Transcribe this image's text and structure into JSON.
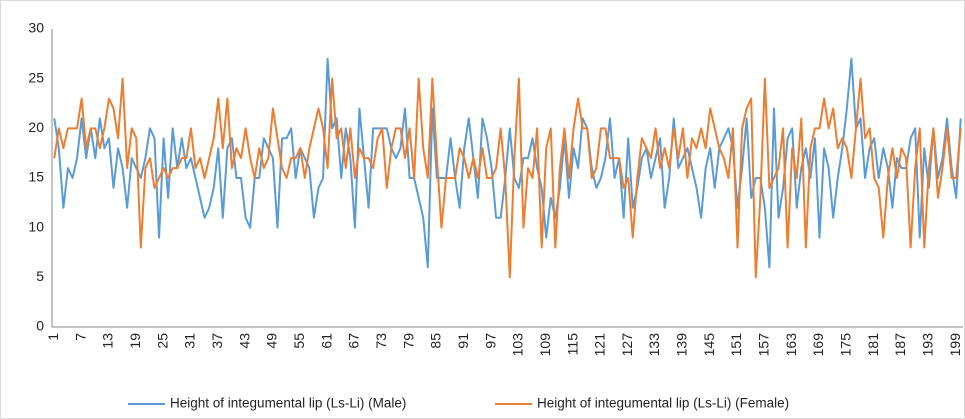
{
  "chart_data": {
    "type": "line",
    "categories": [
      1,
      null,
      null,
      null,
      null,
      null,
      7,
      null,
      null,
      null,
      null,
      null,
      13,
      null,
      null,
      null,
      null,
      null,
      19,
      null,
      null,
      null,
      null,
      null,
      25,
      null,
      null,
      null,
      null,
      null,
      31,
      null,
      null,
      null,
      null,
      null,
      37,
      null,
      null,
      null,
      null,
      null,
      43,
      null,
      null,
      null,
      null,
      null,
      49,
      null,
      null,
      null,
      null,
      null,
      55,
      null,
      null,
      null,
      null,
      null,
      61,
      null,
      null,
      null,
      null,
      null,
      67,
      null,
      null,
      null,
      null,
      null,
      73,
      null,
      null,
      null,
      null,
      null,
      79,
      null,
      null,
      null,
      null,
      null,
      85,
      null,
      null,
      null,
      null,
      null,
      91,
      null,
      null,
      null,
      null,
      null,
      97,
      null,
      null,
      null,
      null,
      null,
      103,
      null,
      null,
      null,
      null,
      null,
      109,
      null,
      null,
      null,
      null,
      null,
      115,
      null,
      null,
      null,
      null,
      null,
      121,
      null,
      null,
      null,
      null,
      null,
      127,
      null,
      null,
      null,
      null,
      null,
      133,
      null,
      null,
      null,
      null,
      null,
      139,
      null,
      null,
      null,
      null,
      null,
      145,
      null,
      null,
      null,
      null,
      null,
      151,
      null,
      null,
      null,
      null,
      null,
      157,
      null,
      null,
      null,
      null,
      null,
      163,
      null,
      null,
      null,
      null,
      null,
      169,
      null,
      null,
      null,
      null,
      null,
      175,
      null,
      null,
      null,
      null,
      null,
      181,
      null,
      null,
      null,
      null,
      null,
      187,
      null,
      null,
      null,
      null,
      null,
      193,
      null,
      null,
      null,
      null,
      null,
      199,
      null
    ],
    "series": [
      {
        "name": "Height of integumental lip (Ls-Li) (Male)",
        "color": "#5b9bd5",
        "values": [
          21,
          18,
          12,
          16,
          15,
          17,
          21,
          17,
          20,
          17,
          21,
          18,
          19,
          14,
          18,
          16,
          12,
          17,
          16,
          15,
          17,
          20,
          19,
          9,
          19,
          13,
          20,
          16,
          19,
          16,
          17,
          15,
          13,
          11,
          12,
          14,
          18,
          11,
          18,
          19,
          15,
          15,
          11,
          10,
          15,
          15,
          19,
          18,
          17,
          10,
          19,
          19,
          20,
          15,
          18,
          17,
          16,
          11,
          14,
          15,
          27,
          20,
          21,
          15,
          20,
          17,
          10,
          22,
          17,
          12,
          20,
          20,
          20,
          20,
          18,
          17,
          18,
          22,
          15,
          15,
          13,
          11,
          6,
          22,
          15,
          15,
          15,
          19,
          15,
          12,
          18,
          21,
          17,
          13,
          21,
          19,
          16,
          11,
          11,
          15,
          20,
          15,
          14,
          17,
          17,
          19,
          16,
          14,
          9,
          13,
          11,
          14,
          19,
          13,
          18,
          16,
          21,
          20,
          16,
          14,
          15,
          17,
          21,
          15,
          17,
          11,
          19,
          12,
          14,
          17,
          18,
          15,
          17,
          19,
          12,
          15,
          21,
          16,
          17,
          18,
          16,
          14,
          11,
          16,
          18,
          14,
          18,
          19,
          20,
          18,
          12,
          16,
          21,
          13,
          15,
          15,
          12,
          6,
          22,
          11,
          14,
          19,
          20,
          12,
          16,
          18,
          15,
          19,
          9,
          18,
          16,
          11,
          15,
          18,
          22,
          27,
          20,
          21,
          15,
          18,
          19,
          15,
          18,
          16,
          12,
          17,
          16,
          16,
          19,
          20,
          9,
          18,
          14,
          20,
          15,
          17,
          21,
          16,
          13,
          21
        ]
      },
      {
        "name": "Height of integumental lip (Ls-Li) (Female)",
        "color": "#ed7d31",
        "values": [
          17,
          20,
          18,
          20,
          20,
          20,
          23,
          18,
          20,
          20,
          18,
          20,
          23,
          22,
          19,
          25,
          16,
          20,
          19,
          8,
          16,
          17,
          14,
          15,
          16,
          15,
          16,
          16,
          17,
          17,
          20,
          16,
          17,
          15,
          17,
          19,
          23,
          18,
          23,
          16,
          18,
          17,
          20,
          17,
          15,
          18,
          16,
          17,
          22,
          19,
          16,
          15,
          17,
          17,
          18,
          15,
          18,
          20,
          22,
          20,
          16,
          25,
          19,
          20,
          16,
          20,
          15,
          18,
          17,
          17,
          16,
          19,
          20,
          14,
          18,
          20,
          20,
          17,
          20,
          15,
          25,
          18,
          15,
          25,
          17,
          10,
          15,
          15,
          15,
          18,
          17,
          15,
          17,
          15,
          18,
          15,
          15,
          16,
          20,
          15,
          5,
          17,
          25,
          10,
          16,
          15,
          20,
          8,
          18,
          20,
          8,
          16,
          20,
          15,
          20,
          23,
          20,
          20,
          15,
          16,
          20,
          20,
          17,
          17,
          17,
          14,
          15,
          9,
          15,
          19,
          18,
          17,
          20,
          16,
          18,
          16,
          20,
          17,
          20,
          15,
          19,
          18,
          20,
          18,
          22,
          20,
          18,
          17,
          15,
          20,
          8,
          20,
          22,
          23,
          5,
          13,
          25,
          14,
          15,
          16,
          20,
          8,
          18,
          15,
          21,
          8,
          18,
          20,
          20,
          23,
          20,
          22,
          18,
          19,
          18,
          15,
          20,
          25,
          19,
          20,
          15,
          14,
          9,
          15,
          18,
          15,
          18,
          17,
          8,
          16,
          20,
          8,
          16,
          20,
          13,
          16,
          20,
          15,
          15,
          20
        ]
      }
    ],
    "ylim": [
      0,
      30
    ],
    "yticks": [
      0,
      5,
      10,
      15,
      20,
      25,
      30
    ],
    "grid": false,
    "legend": "bottom"
  }
}
